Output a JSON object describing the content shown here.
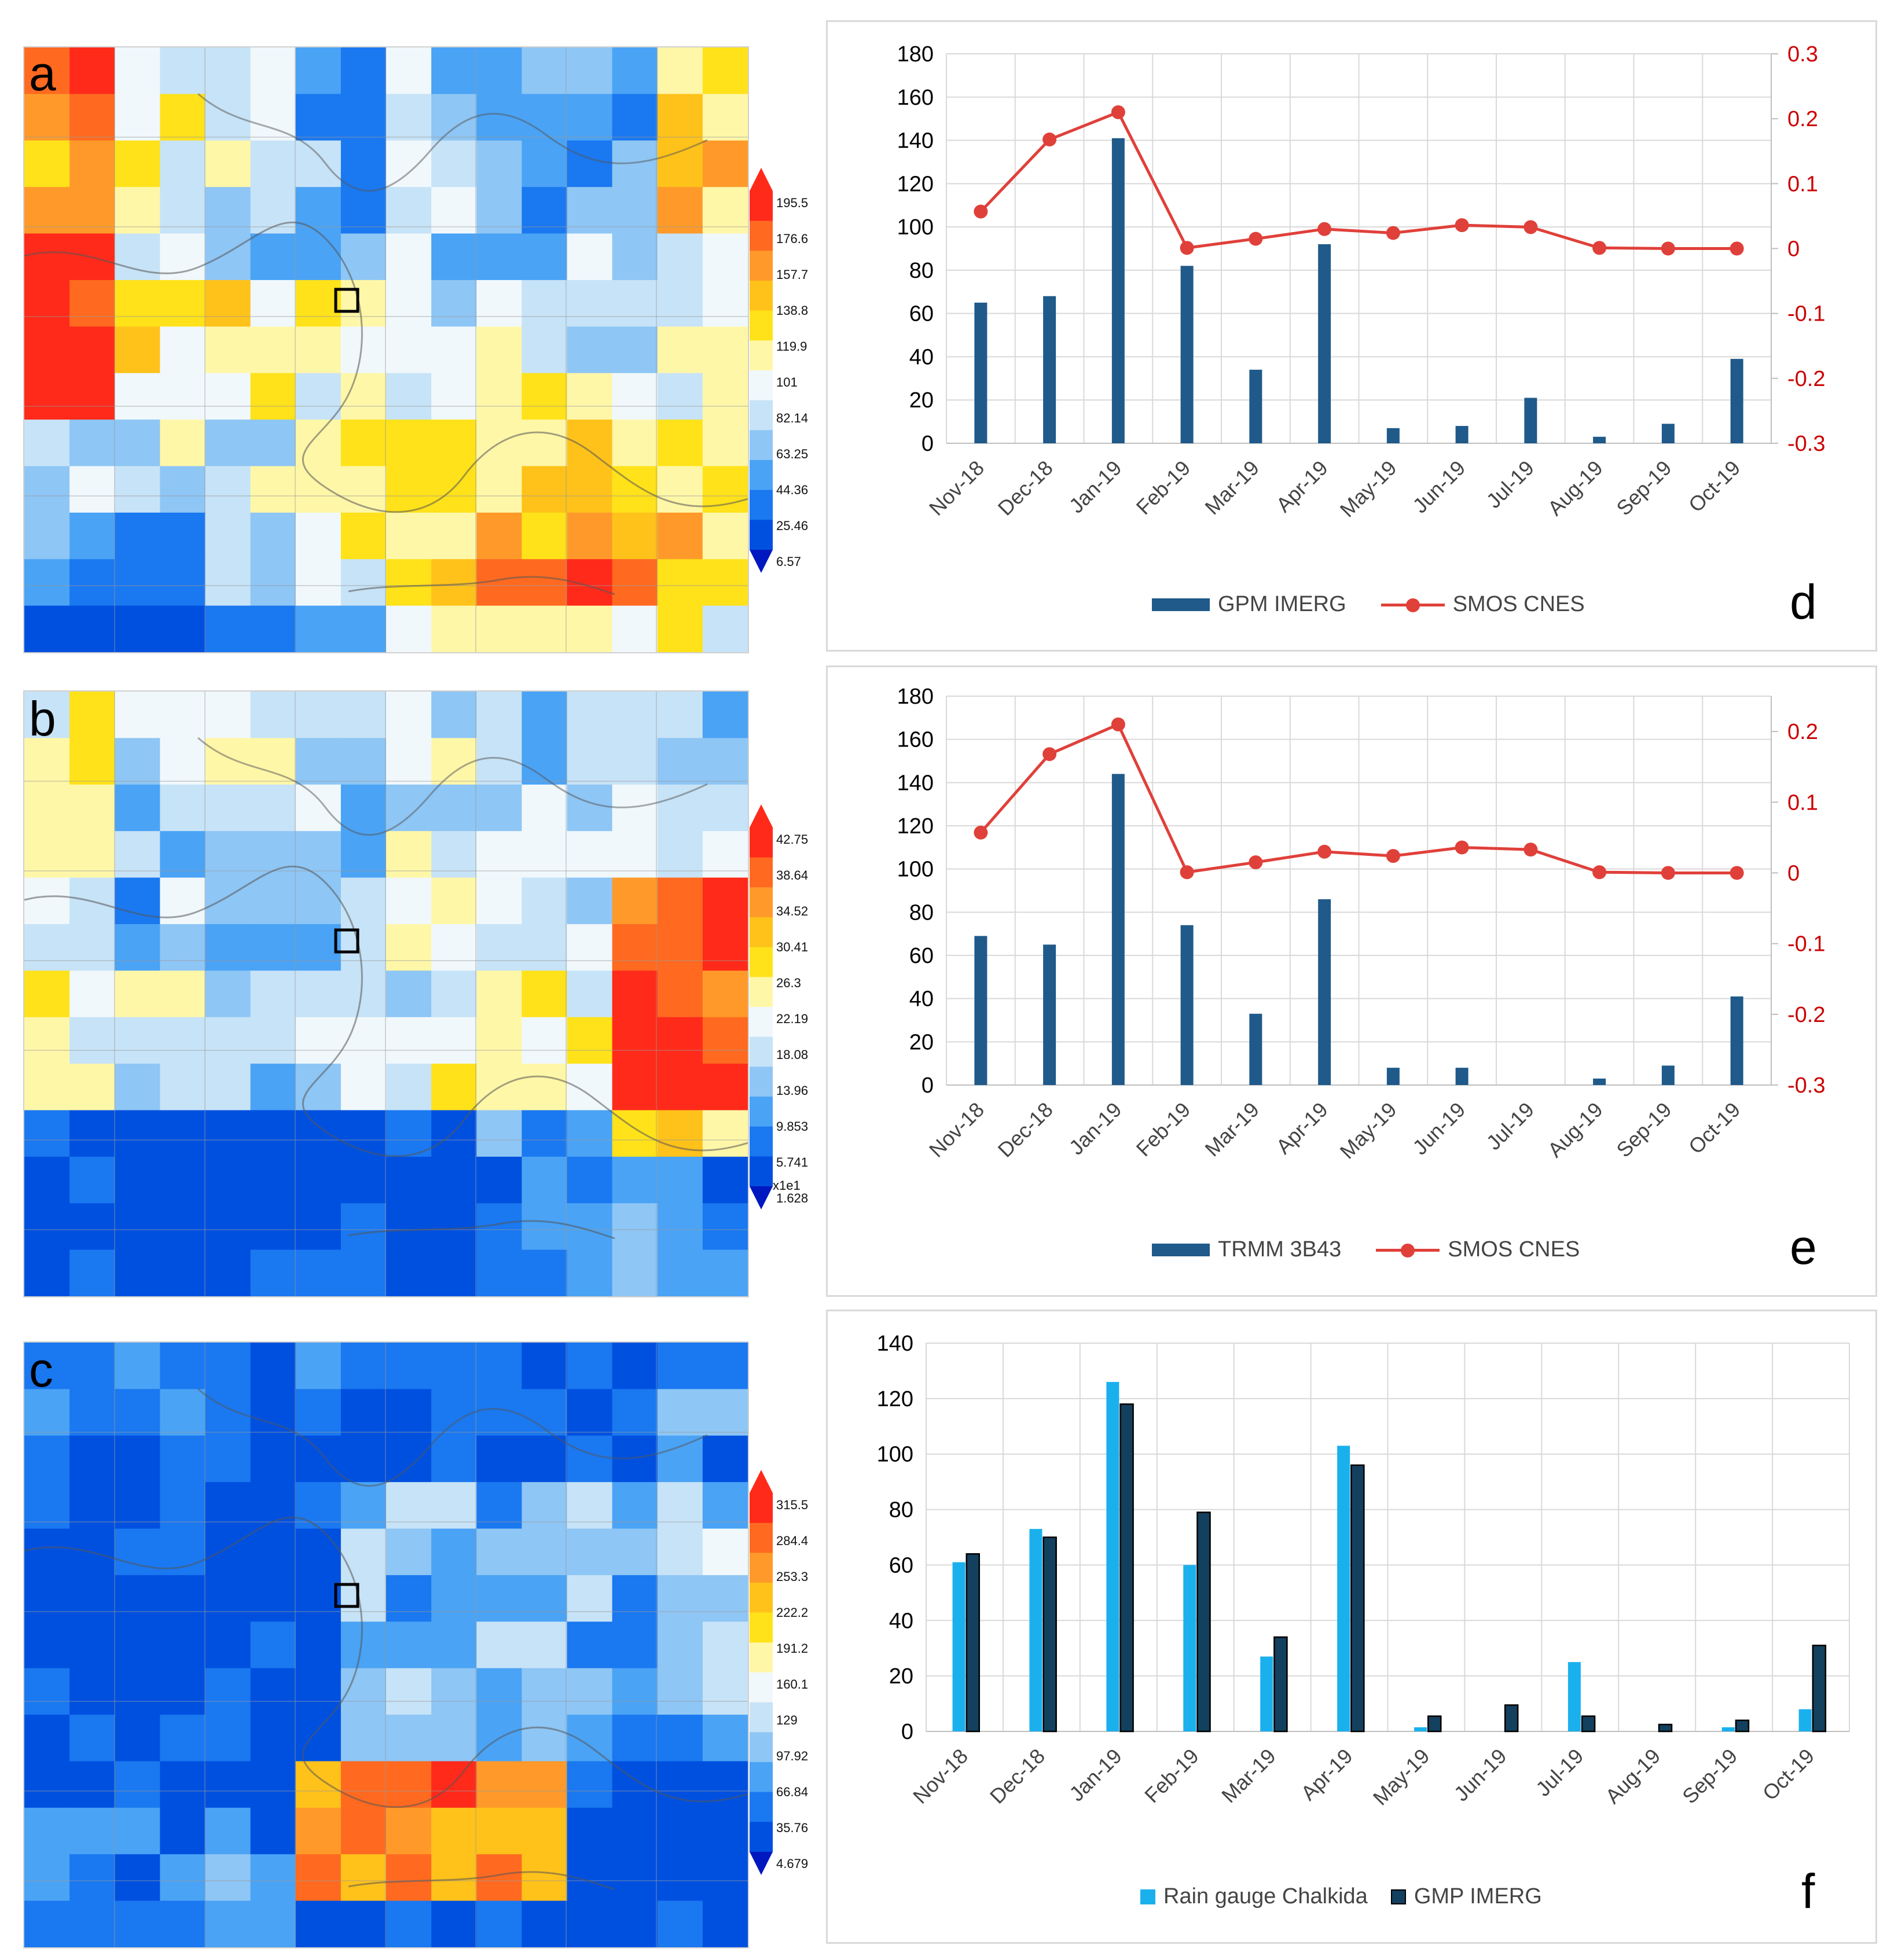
{
  "maps": [
    {
      "letter": "a",
      "ticks": [
        "195.5",
        "176.6",
        "157.7",
        "138.8",
        "119.9",
        "101",
        "82.14",
        "63.25",
        "44.36",
        "25.46",
        "6.57"
      ],
      "unit": "",
      "seed": 11,
      "style": "a"
    },
    {
      "letter": "b",
      "ticks": [
        "42.75",
        "38.64",
        "34.52",
        "30.41",
        "26.3",
        "22.19",
        "18.08",
        "13.96",
        "9.853",
        "5.741",
        "1.628"
      ],
      "unit": "x1e1",
      "seed": 23,
      "style": "b"
    },
    {
      "letter": "c",
      "ticks": [
        "315.5",
        "284.4",
        "253.3",
        "222.2",
        "191.2",
        "160.1",
        "129",
        "97.92",
        "66.84",
        "35.76",
        "4.679"
      ],
      "unit": "",
      "seed": 37,
      "style": "c"
    }
  ],
  "colorscale": [
    "#0050e0",
    "#1a78f0",
    "#4aa3f5",
    "#8ec6f5",
    "#c7e3f7",
    "#f0f8fc",
    "#fff7a8",
    "#ffe21a",
    "#ffc21a",
    "#ff9a2a",
    "#ff6a20",
    "#ff2a1a"
  ],
  "chart_data": [
    {
      "type": "bar+line",
      "panel_letter": "d",
      "categories": [
        "Nov-18",
        "Dec-18",
        "Jan-19",
        "Feb-19",
        "Mar-19",
        "Apr-19",
        "May-19",
        "Jun-19",
        "Jul-19",
        "Aug-19",
        "Sep-19",
        "Oct-19"
      ],
      "series": [
        {
          "name": "GPM IMERG",
          "kind": "bar",
          "axis": "left",
          "color": "#1f5a8a",
          "values": [
            65,
            68,
            141,
            82,
            34,
            92,
            7,
            8,
            21,
            3,
            9,
            39
          ]
        },
        {
          "name": "SMOS CNES",
          "kind": "line",
          "axis": "right",
          "color": "#e0403a",
          "values": [
            0.057,
            0.168,
            0.21,
            0.001,
            0.015,
            0.03,
            0.024,
            0.036,
            0.033,
            0.001,
            0.0,
            0.0
          ]
        }
      ],
      "ylim_left": [
        0,
        180
      ],
      "yticks_left": [
        "0",
        "20",
        "40",
        "60",
        "80",
        "100",
        "120",
        "140",
        "160",
        "180"
      ],
      "ylim_right": [
        -0.3,
        0.3
      ],
      "yticks_right": [
        "-0.3",
        "-0.2",
        "-0.1",
        "0",
        "0.1",
        "0.2",
        "0.3"
      ],
      "right_tick_color": "#cc0000"
    },
    {
      "type": "bar+line",
      "panel_letter": "e",
      "categories": [
        "Nov-18",
        "Dec-18",
        "Jan-19",
        "Feb-19",
        "Mar-19",
        "Apr-19",
        "May-19",
        "Jun-19",
        "Jul-19",
        "Aug-19",
        "Sep-19",
        "Oct-19"
      ],
      "series": [
        {
          "name": "TRMM 3B43",
          "kind": "bar",
          "axis": "left",
          "color": "#1f5a8a",
          "values": [
            69,
            65,
            144,
            74,
            33,
            86,
            8,
            8,
            0,
            3,
            9,
            41
          ]
        },
        {
          "name": "SMOS CNES",
          "kind": "line",
          "axis": "right",
          "color": "#e0403a",
          "values": [
            0.057,
            0.168,
            0.21,
            0.001,
            0.015,
            0.03,
            0.024,
            0.036,
            0.033,
            0.001,
            0.0,
            0.0
          ]
        }
      ],
      "ylim_left": [
        0,
        180
      ],
      "yticks_left": [
        "0",
        "20",
        "40",
        "60",
        "80",
        "100",
        "120",
        "140",
        "160",
        "180"
      ],
      "ylim_right": [
        -0.3,
        0.25
      ],
      "yticks_right": [
        "-0.3",
        "-0.2",
        "-0.1",
        "0",
        "0.1",
        "0.2"
      ],
      "right_tick_color": "#cc0000"
    },
    {
      "type": "bar",
      "panel_letter": "f",
      "categories": [
        "Nov-18",
        "Dec-18",
        "Jan-19",
        "Feb-19",
        "Mar-19",
        "Apr-19",
        "May-19",
        "Jun-19",
        "Jul-19",
        "Aug-19",
        "Sep-19",
        "Oct-19"
      ],
      "series": [
        {
          "name": "Rain gauge Chalkida",
          "kind": "bar",
          "color": "#1ab0ee",
          "values": [
            61,
            73,
            126,
            60,
            27,
            103,
            1.5,
            0,
            25,
            0,
            1.5,
            8
          ]
        },
        {
          "name": "GMP IMERG",
          "kind": "bar",
          "color": "#13405e",
          "values": [
            64,
            70,
            118,
            79,
            34,
            96,
            5.5,
            9.5,
            5.5,
            2.5,
            4,
            31
          ]
        }
      ],
      "ylim_left": [
        0,
        140
      ],
      "yticks_left": [
        "0",
        "20",
        "40",
        "60",
        "80",
        "100",
        "120",
        "140"
      ]
    }
  ]
}
